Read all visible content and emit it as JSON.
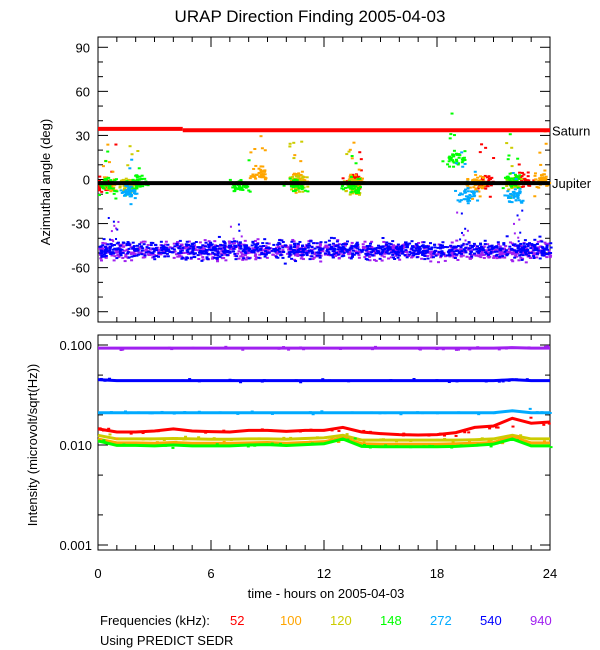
{
  "chart_data": [
    {
      "type": "scatter",
      "title": "URAP Direction Finding  2005-04-03",
      "xlabel": "",
      "ylabel": "Azimuthal angle (deg)",
      "xlim": [
        0,
        24
      ],
      "ylim": [
        -97,
        97
      ],
      "yticks": [
        "90",
        "60",
        "30",
        "0",
        "-30",
        "-60",
        "-90"
      ],
      "ytick_values": [
        90,
        60,
        30,
        0,
        -30,
        -60,
        -90
      ],
      "reference_lines": [
        {
          "name": "Saturn",
          "color": "#ff0000",
          "segments": [
            [
              0,
              4.5,
              34.5
            ],
            [
              4.5,
              24,
              33.5
            ]
          ]
        },
        {
          "name": "Jupiter",
          "color": "#000000",
          "segments": [
            [
              0,
              24,
              -2.5
            ]
          ]
        }
      ],
      "series": [
        {
          "name": "940",
          "color": "#a020f0",
          "band": {
            "mean": -48,
            "spread": 6,
            "t_range": [
              0,
              24
            ]
          }
        },
        {
          "name": "540",
          "color": "#0000ff",
          "band": {
            "mean": -47,
            "spread": 6,
            "t_range": [
              0,
              24
            ]
          }
        },
        {
          "name": "52",
          "color": "#ff0000",
          "clusters": [
            [
              0.3,
              -3
            ],
            [
              13.5,
              0
            ],
            [
              20.5,
              -1
            ],
            [
              22.5,
              0
            ]
          ]
        },
        {
          "name": "100",
          "color": "#ffa500",
          "clusters": [
            [
              0.5,
              -3
            ],
            [
              8.5,
              5
            ],
            [
              10.5,
              0
            ],
            [
              13.5,
              -1
            ],
            [
              20,
              -2
            ],
            [
              23.5,
              0
            ]
          ]
        },
        {
          "name": "120",
          "color": "#cccc00",
          "clusters": [
            [
              1.5,
              -3
            ],
            [
              10.5,
              -2
            ],
            [
              13.5,
              -3
            ],
            [
              22,
              -2
            ]
          ]
        },
        {
          "name": "148",
          "color": "#00ff00",
          "clusters": [
            [
              0.5,
              -3
            ],
            [
              2,
              -2
            ],
            [
              7.5,
              -3
            ],
            [
              10.5,
              -3
            ],
            [
              13.5,
              -4
            ],
            [
              19,
              15
            ],
            [
              22,
              0
            ]
          ]
        },
        {
          "name": "272",
          "color": "#00aaff",
          "clusters": [
            [
              1.5,
              -8
            ],
            [
              19.5,
              -10
            ],
            [
              22,
              -10
            ]
          ]
        }
      ]
    },
    {
      "type": "line",
      "xlabel": "time - hours on 2005-04-03",
      "ylabel": "Intensity (microvolt/sqrt(Hz))",
      "xlim": [
        0,
        24
      ],
      "ylim": [
        0.00093,
        0.11
      ],
      "yscale": "log",
      "yticks": [
        "0.100",
        "0.010",
        "0.001"
      ],
      "ytick_values": [
        0.1,
        0.01,
        0.001
      ],
      "xticks": [
        "0",
        "6",
        "12",
        "18",
        "24"
      ],
      "xtick_values": [
        0,
        6,
        12,
        18,
        24
      ],
      "x": [
        0,
        1,
        2,
        3,
        4,
        5,
        6,
        7,
        8,
        9,
        10,
        11,
        12,
        13,
        14,
        15,
        16,
        17,
        18,
        19,
        20,
        21,
        22,
        23,
        24
      ],
      "series": [
        {
          "name": "940",
          "color": "#a020f0",
          "values": [
            0.093,
            0.093,
            0.093,
            0.093,
            0.093,
            0.093,
            0.093,
            0.093,
            0.093,
            0.093,
            0.093,
            0.093,
            0.093,
            0.093,
            0.093,
            0.093,
            0.093,
            0.093,
            0.093,
            0.093,
            0.093,
            0.093,
            0.094,
            0.093,
            0.093
          ]
        },
        {
          "name": "540",
          "color": "#0000ff",
          "values": [
            0.045,
            0.044,
            0.044,
            0.044,
            0.044,
            0.044,
            0.044,
            0.044,
            0.044,
            0.044,
            0.044,
            0.044,
            0.044,
            0.044,
            0.044,
            0.044,
            0.044,
            0.044,
            0.044,
            0.044,
            0.044,
            0.044,
            0.045,
            0.044,
            0.044
          ]
        },
        {
          "name": "272",
          "color": "#00aaff",
          "values": [
            0.021,
            0.021,
            0.021,
            0.021,
            0.021,
            0.021,
            0.021,
            0.021,
            0.021,
            0.021,
            0.021,
            0.021,
            0.021,
            0.021,
            0.021,
            0.021,
            0.021,
            0.021,
            0.021,
            0.021,
            0.021,
            0.021,
            0.022,
            0.021,
            0.021
          ]
        },
        {
          "name": "52",
          "color": "#ff0000",
          "values": [
            0.0145,
            0.0135,
            0.0135,
            0.0138,
            0.0145,
            0.0138,
            0.0136,
            0.0135,
            0.014,
            0.014,
            0.0137,
            0.014,
            0.014,
            0.015,
            0.0135,
            0.013,
            0.0127,
            0.0126,
            0.0127,
            0.0133,
            0.015,
            0.0155,
            0.0185,
            0.0165,
            0.017
          ]
        },
        {
          "name": "120",
          "color": "#cccc00",
          "values": [
            0.0125,
            0.0115,
            0.0115,
            0.0115,
            0.0116,
            0.0115,
            0.0114,
            0.0114,
            0.0115,
            0.0115,
            0.0114,
            0.0116,
            0.0118,
            0.0125,
            0.0112,
            0.0112,
            0.0112,
            0.0112,
            0.0112,
            0.0112,
            0.0113,
            0.0115,
            0.0125,
            0.0115,
            0.0115
          ]
        },
        {
          "name": "100",
          "color": "#ffa500",
          "values": [
            0.0115,
            0.0105,
            0.0105,
            0.0104,
            0.0106,
            0.0104,
            0.0104,
            0.0104,
            0.0105,
            0.0106,
            0.0104,
            0.0106,
            0.0108,
            0.0118,
            0.0103,
            0.0102,
            0.0102,
            0.0102,
            0.0102,
            0.0103,
            0.0104,
            0.0106,
            0.012,
            0.0105,
            0.0105
          ]
        },
        {
          "name": "148",
          "color": "#00ff00",
          "values": [
            0.011,
            0.0099,
            0.0099,
            0.0098,
            0.01,
            0.0098,
            0.0098,
            0.0098,
            0.01,
            0.0101,
            0.0099,
            0.0101,
            0.0103,
            0.0115,
            0.0097,
            0.0096,
            0.0096,
            0.0096,
            0.0096,
            0.0097,
            0.0099,
            0.0102,
            0.0115,
            0.0098,
            0.0098
          ]
        }
      ]
    }
  ],
  "legend": {
    "label": "Frequencies (kHz):",
    "items": [
      {
        "label": "52",
        "color": "#ff0000"
      },
      {
        "label": "100",
        "color": "#ffa500"
      },
      {
        "label": "120",
        "color": "#cccc00"
      },
      {
        "label": "148",
        "color": "#00ff00"
      },
      {
        "label": "272",
        "color": "#00aaff"
      },
      {
        "label": "540",
        "color": "#0000ff"
      },
      {
        "label": "940",
        "color": "#a020f0"
      }
    ]
  },
  "footnote": "Using PREDICT SEDR"
}
